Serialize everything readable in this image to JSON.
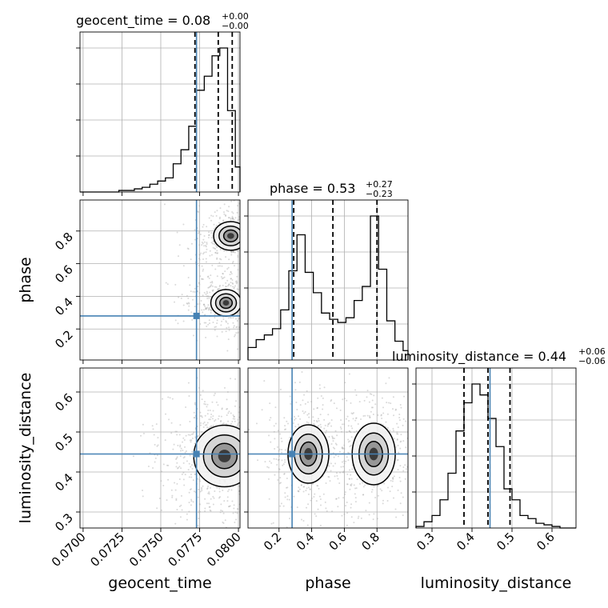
{
  "chart_data": {
    "type": "corner",
    "parameters": [
      "geocent_time",
      "phase",
      "luminosity_distance"
    ],
    "truths": {
      "geocent_time": 0.0773,
      "phase": 0.28,
      "luminosity_distance": 0.445
    },
    "titles": [
      {
        "param": "geocent_time",
        "text": "geocent_time = 0.08",
        "plus": "+0.00",
        "minus": "−0.00"
      },
      {
        "param": "phase",
        "text": "phase = 0.53",
        "plus": "+0.27",
        "minus": "−0.23"
      },
      {
        "param": "luminosity_distance",
        "text": "luminosity_distance = 0.44",
        "plus": "+0.06",
        "minus": "−0.06"
      }
    ],
    "axis_labels": {
      "geocent_time": "geocent_time",
      "phase": "phase",
      "luminosity_distance": "luminosity_distance"
    },
    "ranges": {
      "geocent_time": [
        0.0698,
        0.0801
      ],
      "phase": [
        0.01,
        0.99
      ],
      "luminosity_distance": [
        0.26,
        0.66
      ]
    },
    "ticks": {
      "geocent_time": [
        0.07,
        0.0725,
        0.075,
        0.0775,
        0.08
      ],
      "geocent_time_labels": [
        "0.0700",
        "0.0725",
        "0.0750",
        "0.0775",
        "0.0800"
      ],
      "phase": [
        0.2,
        0.4,
        0.6,
        0.8
      ],
      "phase_labels": [
        "0.2",
        "0.4",
        "0.6",
        "0.8"
      ],
      "luminosity_distance": [
        0.3,
        0.4,
        0.5,
        0.6
      ],
      "luminosity_distance_labels": [
        "0.3",
        "0.4",
        "0.5",
        "0.6"
      ]
    },
    "quantiles": {
      "geocent_time": [
        0.0772,
        0.0787,
        0.0796
      ],
      "phase": [
        0.29,
        0.53,
        0.8
      ],
      "luminosity_distance": [
        0.38,
        0.44,
        0.495
      ]
    },
    "histograms": {
      "geocent_time": {
        "edges": [
          0.0698,
          0.0703,
          0.0708,
          0.0713,
          0.0718,
          0.0723,
          0.0728,
          0.0733,
          0.0738,
          0.0743,
          0.0748,
          0.0753,
          0.0758,
          0.0763,
          0.0768,
          0.0773,
          0.0778,
          0.0783,
          0.0788,
          0.0793,
          0.0798,
          0.0801
        ],
        "counts": [
          0,
          0,
          0,
          0,
          0,
          1,
          1,
          2,
          3,
          5,
          7,
          9,
          18,
          27,
          42,
          65,
          74,
          87,
          92,
          52,
          16
        ]
      },
      "phase": {
        "edges": [
          0.01,
          0.06,
          0.11,
          0.16,
          0.21,
          0.26,
          0.31,
          0.36,
          0.41,
          0.46,
          0.51,
          0.56,
          0.61,
          0.66,
          0.71,
          0.76,
          0.81,
          0.86,
          0.91,
          0.96,
          0.99
        ],
        "counts": [
          8,
          13,
          16,
          20,
          32,
          57,
          80,
          56,
          43,
          30,
          26,
          24,
          27,
          38,
          47,
          92,
          58,
          25,
          12,
          6
        ]
      },
      "luminosity_distance": {
        "edges": [
          0.26,
          0.28,
          0.3,
          0.32,
          0.34,
          0.36,
          0.38,
          0.4,
          0.42,
          0.44,
          0.46,
          0.48,
          0.5,
          0.52,
          0.54,
          0.56,
          0.58,
          0.6,
          0.62,
          0.64,
          0.66
        ],
        "counts": [
          1,
          4,
          8,
          18,
          35,
          62,
          80,
          92,
          85,
          70,
          52,
          25,
          18,
          8,
          6,
          3,
          2,
          1,
          0,
          0
        ]
      }
    },
    "density_modes": {
      "geocent_time_vs_phase": [
        {
          "center": [
            0.0795,
            0.77
          ],
          "sigma": [
            0.0005,
            0.04
          ],
          "weight": 1.0
        },
        {
          "center": [
            0.0792,
            0.36
          ],
          "sigma": [
            0.0006,
            0.05
          ],
          "weight": 0.55
        }
      ],
      "geocent_time_vs_luminosity_distance": [
        {
          "center": [
            0.0791,
            0.44
          ],
          "sigma": [
            0.0009,
            0.035
          ],
          "weight": 1.0
        }
      ],
      "phase_vs_luminosity_distance": [
        {
          "center": [
            0.38,
            0.445
          ],
          "sigma": [
            0.06,
            0.035
          ],
          "weight": 0.9
        },
        {
          "center": [
            0.78,
            0.445
          ],
          "sigma": [
            0.06,
            0.035
          ],
          "weight": 1.0
        }
      ]
    },
    "grid": true,
    "colors": {
      "truth": "#4682b4",
      "hist": "#000000",
      "scatter": "#aaaaaa",
      "contour": "#000000",
      "grid": "#b0b0b0"
    }
  }
}
